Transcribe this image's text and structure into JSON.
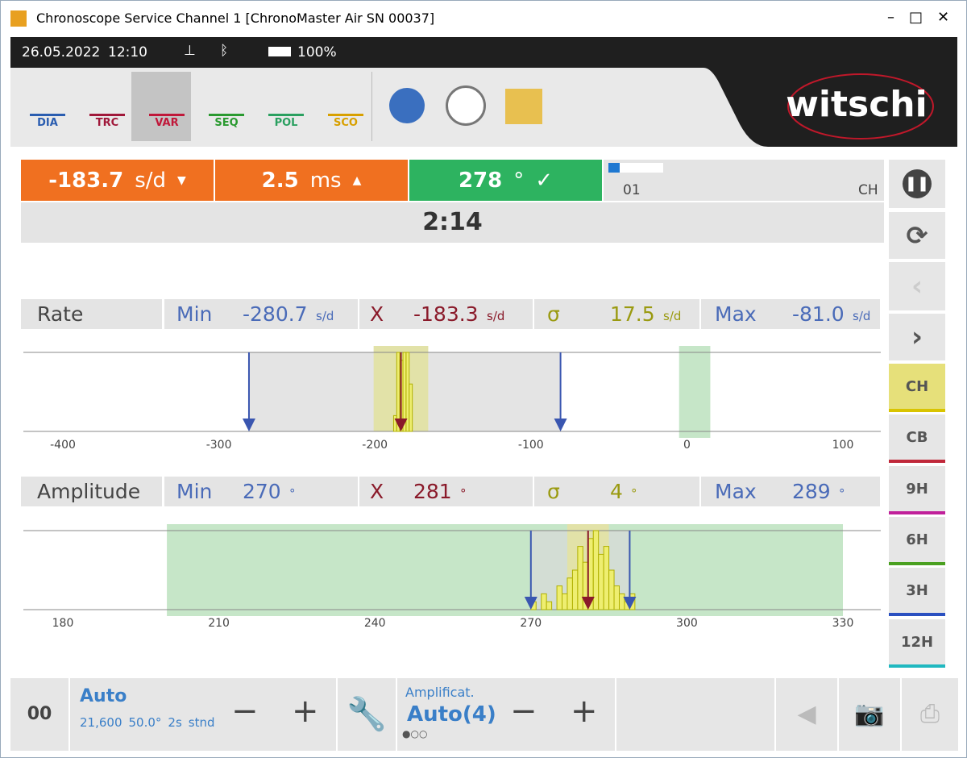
{
  "window": {
    "title": "Chronoscope Service Channel 1 [ChronoMaster Air SN 00037]"
  },
  "status": {
    "date": "26.05.2022",
    "time": "12:10",
    "battery": "100%"
  },
  "toolbar": {
    "tabs": [
      "DIA",
      "TRC",
      "VAR",
      "SEQ",
      "POL",
      "SCO"
    ],
    "brand": "witschi"
  },
  "readouts": {
    "rate": "-183.7",
    "rate_unit": "s/d",
    "beat_error": "2.5",
    "beat_error_unit": "ms",
    "amplitude": "278",
    "amplitude_unit": "°",
    "channel_index": "01",
    "channel": "CH",
    "elapsed": "2:14"
  },
  "rate_stats": {
    "label": "Rate",
    "min_label": "Min",
    "min": "-280.7",
    "x_label": "X",
    "x": "-183.3",
    "sigma_label": "σ",
    "sigma": "17.5",
    "max_label": "Max",
    "max": "-81.0",
    "unit": "s/d"
  },
  "rate_chart": {
    "xlim": [
      -400,
      100
    ],
    "xticks": [
      -400,
      -300,
      -200,
      -100,
      0,
      100
    ],
    "bins": [
      -188,
      -186,
      -184,
      -182,
      -180,
      -178,
      -176
    ],
    "counts": [
      2,
      10,
      9,
      10,
      10,
      6
    ],
    "tolerance": [
      -5,
      15
    ]
  },
  "amplitude_stats": {
    "label": "Amplitude",
    "min_label": "Min",
    "min": "270",
    "x_label": "X",
    "x": "281",
    "sigma_label": "σ",
    "sigma": "4",
    "max_label": "Max",
    "max": "289",
    "unit": "°"
  },
  "amplitude_chart": {
    "xlim": [
      180,
      330
    ],
    "xticks": [
      180,
      210,
      240,
      270,
      300,
      330
    ],
    "bins": [
      270,
      271,
      272,
      273,
      274,
      275,
      276,
      277,
      278,
      279,
      280,
      281,
      282,
      283,
      284,
      285,
      286,
      287,
      288,
      289,
      290
    ],
    "counts": [
      1,
      0,
      2,
      1,
      0,
      3,
      2,
      4,
      5,
      8,
      6,
      9,
      10,
      7,
      8,
      5,
      3,
      2,
      1,
      2
    ],
    "tolerance": [
      200,
      330
    ]
  },
  "positions": [
    "CH",
    "CB",
    "9H",
    "6H",
    "3H",
    "12H"
  ],
  "bottom": {
    "counter": "00",
    "mode": "Auto",
    "beat": "21,600",
    "lift": "50.0°",
    "period": "2s",
    "standard": "stnd",
    "amp_label": "Amplificat.",
    "amp_value": "Auto(4)"
  }
}
